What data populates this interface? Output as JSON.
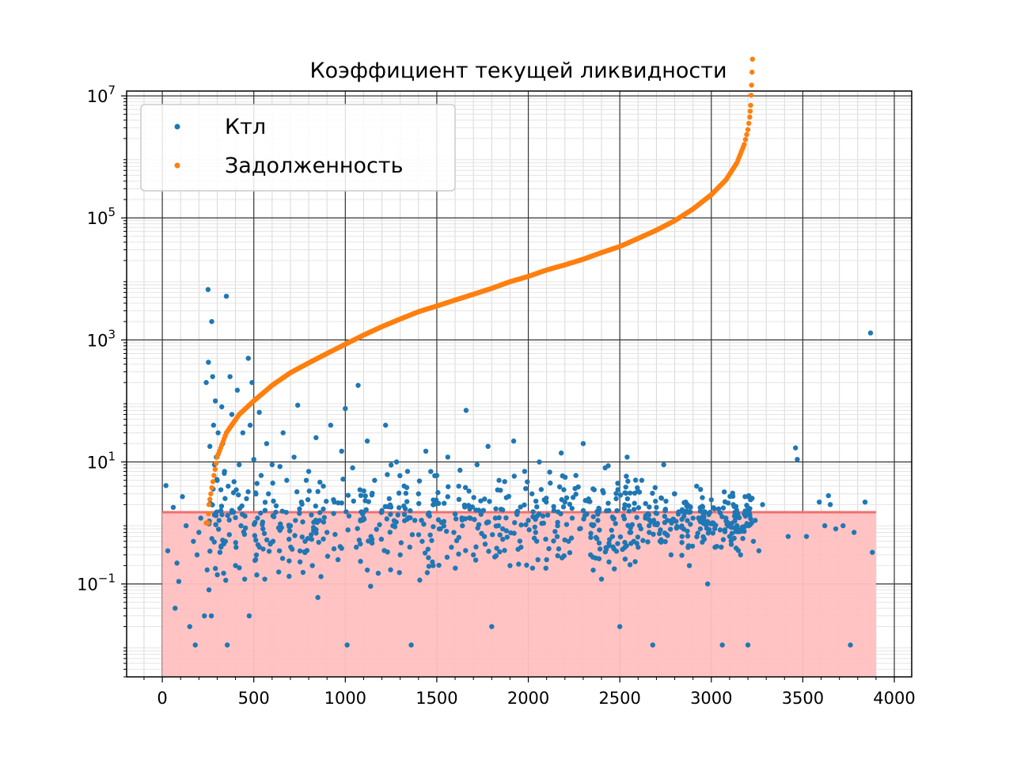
{
  "chart_data": {
    "type": "scatter",
    "title": "Коэффициент текущей ликвидности",
    "xlabel": "",
    "ylabel": "",
    "xlim": [
      -195,
      4095
    ],
    "ylim": [
      0.003,
      12000000
    ],
    "yscale": "log",
    "x_ticks": [
      0,
      500,
      1000,
      1500,
      2000,
      2500,
      3000,
      3500,
      4000
    ],
    "x_tick_labels": [
      "0",
      "500",
      "1000",
      "1500",
      "2000",
      "2500",
      "3000",
      "3500",
      "4000"
    ],
    "y_ticks": [
      {
        "value": 0.1,
        "base": "10",
        "exp": "−1"
      },
      {
        "value": 10,
        "base": "10",
        "exp": "1"
      },
      {
        "value": 1000,
        "base": "10",
        "exp": "3"
      },
      {
        "value": 100000,
        "base": "10",
        "exp": "5"
      },
      {
        "value": 10000000,
        "base": "10",
        "exp": "7"
      }
    ],
    "grid": true,
    "legend_position": "top-left",
    "threshold": {
      "y": 1.5,
      "x_from": 0,
      "x_to": 3900,
      "line_color": "#f07070",
      "fill_color": "#ffc0c0"
    },
    "series": [
      {
        "name": "Ктл",
        "color": "#1f77b4",
        "points": [
          [
            20,
            4.1
          ],
          [
            30,
            0.35
          ],
          [
            60,
            1.8
          ],
          [
            70,
            0.04
          ],
          [
            80,
            0.22
          ],
          [
            90,
            0.11
          ],
          [
            110,
            2.7
          ],
          [
            130,
            0.9
          ],
          [
            150,
            0.02
          ],
          [
            170,
            0.5
          ],
          [
            180,
            0.01
          ],
          [
            190,
            0.3
          ],
          [
            200,
            0.7
          ],
          [
            210,
            1.2
          ],
          [
            230,
            0.03
          ],
          [
            240,
            200
          ],
          [
            245,
            0.17
          ],
          [
            250,
            6700
          ],
          [
            252,
            430
          ],
          [
            255,
            0.08
          ],
          [
            260,
            18
          ],
          [
            262,
            2.1
          ],
          [
            268,
            0.03
          ],
          [
            270,
            2000
          ],
          [
            275,
            250
          ],
          [
            280,
            40
          ],
          [
            285,
            9
          ],
          [
            290,
            100
          ],
          [
            295,
            12
          ],
          [
            300,
            5
          ],
          [
            305,
            30
          ],
          [
            310,
            1.1
          ],
          [
            315,
            0.33
          ],
          [
            320,
            3.5
          ],
          [
            325,
            80
          ],
          [
            330,
            20
          ],
          [
            335,
            0.15
          ],
          [
            340,
            7
          ],
          [
            345,
            0.5
          ],
          [
            350,
            5200
          ],
          [
            355,
            0.01
          ],
          [
            360,
            4
          ],
          [
            370,
            250
          ],
          [
            380,
            60
          ],
          [
            390,
            1.5
          ],
          [
            400,
            0.2
          ],
          [
            410,
            150
          ],
          [
            420,
            9
          ],
          [
            430,
            0.9
          ],
          [
            440,
            30
          ],
          [
            450,
            0.12
          ],
          [
            460,
            2.5
          ],
          [
            470,
            500
          ],
          [
            475,
            0.03
          ],
          [
            480,
            40
          ],
          [
            490,
            200
          ],
          [
            500,
            11
          ],
          [
            510,
            0.25
          ],
          [
            520,
            1.2
          ],
          [
            530,
            65
          ],
          [
            540,
            6
          ],
          [
            550,
            0.8
          ],
          [
            560,
            0.12
          ],
          [
            570,
            20
          ],
          [
            580,
            3
          ],
          [
            590,
            0.45
          ],
          [
            600,
            9
          ],
          [
            620,
            1.5
          ],
          [
            640,
            0.35
          ],
          [
            660,
            30
          ],
          [
            680,
            5
          ],
          [
            700,
            0.9
          ],
          [
            720,
            12
          ],
          [
            740,
            85
          ],
          [
            760,
            2.2
          ],
          [
            780,
            0.5
          ],
          [
            800,
            7
          ],
          [
            820,
            0.2
          ],
          [
            840,
            25
          ],
          [
            850,
            0.06
          ],
          [
            860,
            1.1
          ],
          [
            880,
            4
          ],
          [
            900,
            0.7
          ],
          [
            920,
            40
          ],
          [
            940,
            2.2
          ],
          [
            960,
            0.25
          ],
          [
            980,
            15
          ],
          [
            1000,
            75
          ],
          [
            1010,
            0.01
          ],
          [
            1020,
            1.3
          ],
          [
            1040,
            8
          ],
          [
            1060,
            0.4
          ],
          [
            1070,
            180
          ],
          [
            1080,
            3.5
          ],
          [
            1100,
            1.2
          ],
          [
            1120,
            22
          ],
          [
            1140,
            0.6
          ],
          [
            1160,
            5
          ],
          [
            1180,
            0.15
          ],
          [
            1200,
            1.6
          ],
          [
            1220,
            40
          ],
          [
            1240,
            2.5
          ],
          [
            1260,
            0.9
          ],
          [
            1280,
            10
          ],
          [
            1300,
            0.3
          ],
          [
            1320,
            1.9
          ],
          [
            1340,
            7
          ],
          [
            1360,
            0.01
          ],
          [
            1380,
            1.1
          ],
          [
            1400,
            3
          ],
          [
            1420,
            0.5
          ],
          [
            1440,
            15
          ],
          [
            1460,
            1.3
          ],
          [
            1480,
            0.2
          ],
          [
            1500,
            6
          ],
          [
            1520,
            0.8
          ],
          [
            1540,
            2.1
          ],
          [
            1560,
            12
          ],
          [
            1580,
            0.4
          ],
          [
            1600,
            1.4
          ],
          [
            1620,
            4
          ],
          [
            1640,
            0.9
          ],
          [
            1660,
            70
          ],
          [
            1680,
            1.7
          ],
          [
            1700,
            0.3
          ],
          [
            1720,
            9
          ],
          [
            1740,
            2.3
          ],
          [
            1760,
            0.6
          ],
          [
            1780,
            18
          ],
          [
            1800,
            0.02
          ],
          [
            1820,
            1.2
          ],
          [
            1840,
            5
          ],
          [
            1860,
            0.8
          ],
          [
            1880,
            2.6
          ],
          [
            1900,
            0.2
          ],
          [
            1920,
            22
          ],
          [
            1940,
            1.5
          ],
          [
            1960,
            0.4
          ],
          [
            1980,
            7
          ],
          [
            2000,
            1.1
          ],
          [
            2020,
            3
          ],
          [
            2040,
            0.7
          ],
          [
            2060,
            10
          ],
          [
            2080,
            1.3
          ],
          [
            2100,
            0.25
          ],
          [
            2120,
            4.5
          ],
          [
            2140,
            1.6
          ],
          [
            2160,
            0.9
          ],
          [
            2180,
            14
          ],
          [
            2200,
            2.2
          ],
          [
            2220,
            0.5
          ],
          [
            2240,
            1.2
          ],
          [
            2260,
            6
          ],
          [
            2280,
            0.8
          ],
          [
            2300,
            20
          ],
          [
            2320,
            1.4
          ],
          [
            2340,
            0.3
          ],
          [
            2360,
            3.5
          ],
          [
            2380,
            1.1
          ],
          [
            2400,
            0.12
          ],
          [
            2420,
            8
          ],
          [
            2440,
            1.6
          ],
          [
            2460,
            0.6
          ],
          [
            2480,
            2.5
          ],
          [
            2500,
            0.02
          ],
          [
            2520,
            1.3
          ],
          [
            2540,
            12
          ],
          [
            2560,
            0.7
          ],
          [
            2580,
            2.1
          ],
          [
            2600,
            0.4
          ],
          [
            2620,
            5
          ],
          [
            2640,
            1.2
          ],
          [
            2660,
            0.9
          ],
          [
            2680,
            0.01
          ],
          [
            2700,
            1.8
          ],
          [
            2720,
            0.5
          ],
          [
            2740,
            9
          ],
          [
            2760,
            1.1
          ],
          [
            2780,
            0.3
          ],
          [
            2800,
            3
          ],
          [
            2820,
            1.4
          ],
          [
            2840,
            0.6
          ],
          [
            2860,
            2.2
          ],
          [
            2880,
            0.2
          ],
          [
            2900,
            1.2
          ],
          [
            2920,
            4
          ],
          [
            2940,
            0.8
          ],
          [
            2960,
            1.5
          ],
          [
            2980,
            0.1
          ],
          [
            3000,
            2.4
          ],
          [
            3010,
            1.0
          ],
          [
            3020,
            0.4
          ],
          [
            3040,
            1.7
          ],
          [
            3060,
            0.01
          ],
          [
            3080,
            1.2
          ],
          [
            3100,
            0.6
          ],
          [
            3120,
            2
          ],
          [
            3140,
            0.9
          ],
          [
            3160,
            0.3
          ],
          [
            3180,
            1.4
          ],
          [
            3200,
            0.01
          ],
          [
            3220,
            1.0
          ],
          [
            3230,
            0.5
          ],
          [
            3240,
            1.1
          ],
          [
            3260,
            0.35
          ],
          [
            3280,
            2
          ],
          [
            3420,
            0.6
          ],
          [
            3460,
            17
          ],
          [
            3470,
            11
          ],
          [
            3520,
            0.6
          ],
          [
            3590,
            2.2
          ],
          [
            3620,
            0.9
          ],
          [
            3640,
            2.8
          ],
          [
            3650,
            2.0
          ],
          [
            3680,
            0.8
          ],
          [
            3720,
            0.9
          ],
          [
            3760,
            0.01
          ],
          [
            3780,
            0.7
          ],
          [
            3840,
            2.2
          ],
          [
            3870,
            1300
          ],
          [
            3880,
            0.33
          ]
        ]
      },
      {
        "name": "Задолженность",
        "color": "#ff7f0e",
        "curve": [
          [
            240,
            1.0
          ],
          [
            250,
            1.0
          ],
          [
            255,
            2.0
          ],
          [
            265,
            3.0
          ],
          [
            300,
            12
          ],
          [
            350,
            30
          ],
          [
            420,
            60
          ],
          [
            500,
            100
          ],
          [
            600,
            180
          ],
          [
            700,
            290
          ],
          [
            800,
            420
          ],
          [
            900,
            600
          ],
          [
            1000,
            850
          ],
          [
            1100,
            1200
          ],
          [
            1200,
            1650
          ],
          [
            1300,
            2200
          ],
          [
            1400,
            2900
          ],
          [
            1500,
            3600
          ],
          [
            1600,
            4500
          ],
          [
            1700,
            5600
          ],
          [
            1800,
            7000
          ],
          [
            1900,
            9000
          ],
          [
            2000,
            11000
          ],
          [
            2100,
            14000
          ],
          [
            2200,
            17000
          ],
          [
            2300,
            21000
          ],
          [
            2400,
            27000
          ],
          [
            2500,
            34000
          ],
          [
            2600,
            46000
          ],
          [
            2700,
            63000
          ],
          [
            2800,
            90000
          ],
          [
            2900,
            140000
          ],
          [
            3000,
            240000
          ],
          [
            3080,
            420000
          ],
          [
            3140,
            800000
          ],
          [
            3180,
            1600000
          ],
          [
            3200,
            2800000
          ],
          [
            3210,
            4500000
          ],
          [
            3215,
            7000000
          ],
          [
            3220,
            15000000
          ],
          [
            3225,
            40000000
          ]
        ]
      }
    ]
  }
}
